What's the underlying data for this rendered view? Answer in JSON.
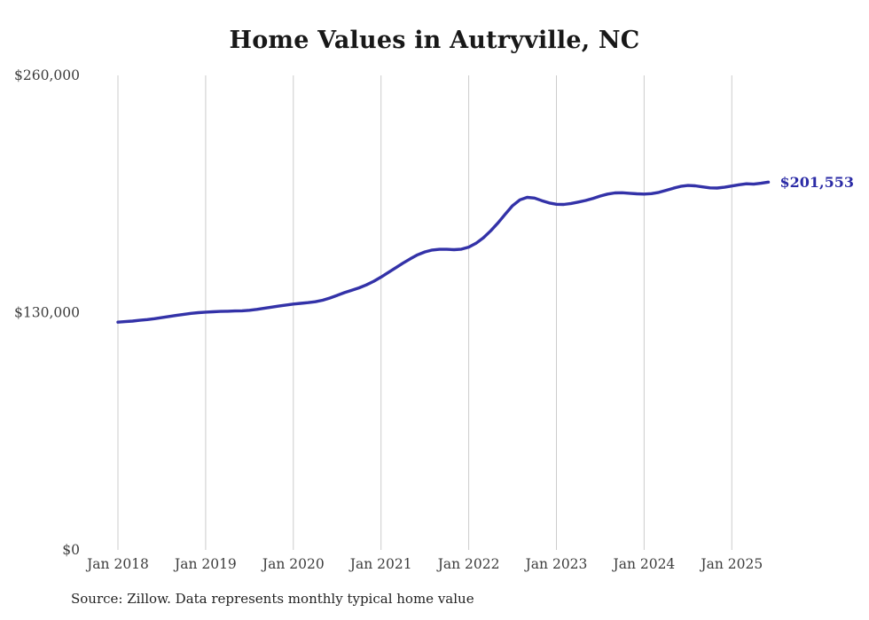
{
  "chart_data": {
    "type": "line",
    "title": "Home Values in Autryville, NC",
    "source_note": "Source: Zillow. Data represents monthly typical home value",
    "end_label": "$201,553",
    "final_value": 201553,
    "x_start": "Jan 2018",
    "x_end": "Jun 2025",
    "x_ticks": [
      "Jan 2018",
      "Jan 2019",
      "Jan 2020",
      "Jan 2021",
      "Jan 2022",
      "Jan 2023",
      "Jan 2024",
      "Jan 2025"
    ],
    "y_ticks": [
      {
        "value": 0,
        "label": "$0"
      },
      {
        "value": 130000,
        "label": "$130,000"
      },
      {
        "value": 260000,
        "label": "$260,000"
      }
    ],
    "ylim": [
      0,
      260000
    ],
    "grid": "vertical-only",
    "legend": "none",
    "line_color": "#3332a8",
    "label_color": "#2b2ba6",
    "axis_label_color": "#3d3d3d",
    "grid_color": "#cccccc",
    "values": [
      124800,
      125100,
      125400,
      125800,
      126200,
      126700,
      127300,
      127900,
      128500,
      129100,
      129600,
      130000,
      130300,
      130500,
      130700,
      130800,
      130900,
      131000,
      131300,
      131800,
      132400,
      133000,
      133600,
      134200,
      134700,
      135100,
      135500,
      136000,
      136800,
      138000,
      139500,
      141000,
      142300,
      143600,
      145200,
      147200,
      149500,
      152000,
      154600,
      157100,
      159500,
      161700,
      163300,
      164300,
      164700,
      164700,
      164500,
      164800,
      165900,
      168000,
      171000,
      174800,
      179200,
      184000,
      188600,
      191800,
      193200,
      192800,
      191400,
      190100,
      189400,
      189300,
      189800,
      190600,
      191500,
      192600,
      193900,
      195000,
      195600,
      195700,
      195400,
      195100,
      195000,
      195200,
      195900,
      197000,
      198200,
      199200,
      199700,
      199500,
      198900,
      198400,
      198300,
      198700,
      199400,
      200100,
      200600,
      200400,
      200900,
      201553
    ]
  }
}
